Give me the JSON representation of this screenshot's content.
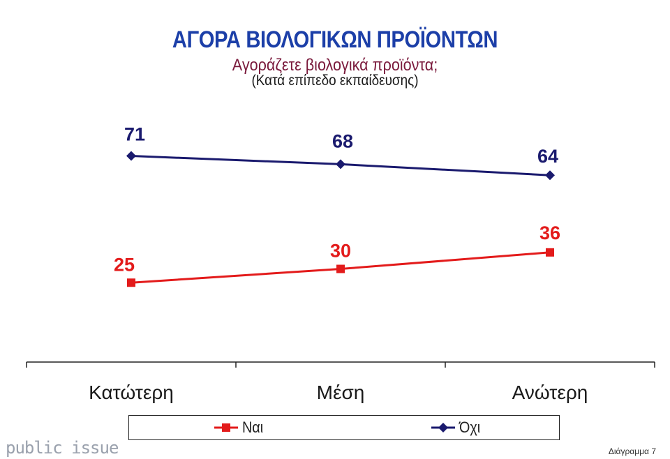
{
  "header": {
    "title": "ΑΓΟΡΑ ΒΙΟΛΟΓΙΚΩΝ ΠΡΟΪΟΝΤΩΝ",
    "subtitle": "Αγοράζετε βιολογικά προϊόντα;",
    "note": "(Κατά επίπεδο εκπαίδευσης)"
  },
  "chart_data": {
    "type": "line",
    "categories": [
      "Κατώτερη",
      "Μέση",
      "Ανώτερη"
    ],
    "series": [
      {
        "name": "Ναι",
        "values": [
          25,
          30,
          36
        ],
        "color": "#e31b1b",
        "marker": "square"
      },
      {
        "name": "Όχι",
        "values": [
          71,
          68,
          64
        ],
        "color": "#1a1a6e",
        "marker": "diamond"
      }
    ],
    "grid": false,
    "legend_position": "bottom",
    "data_labels": true
  },
  "footer": {
    "brand": "public issue",
    "page_label": "Διάγραμμα 7"
  }
}
